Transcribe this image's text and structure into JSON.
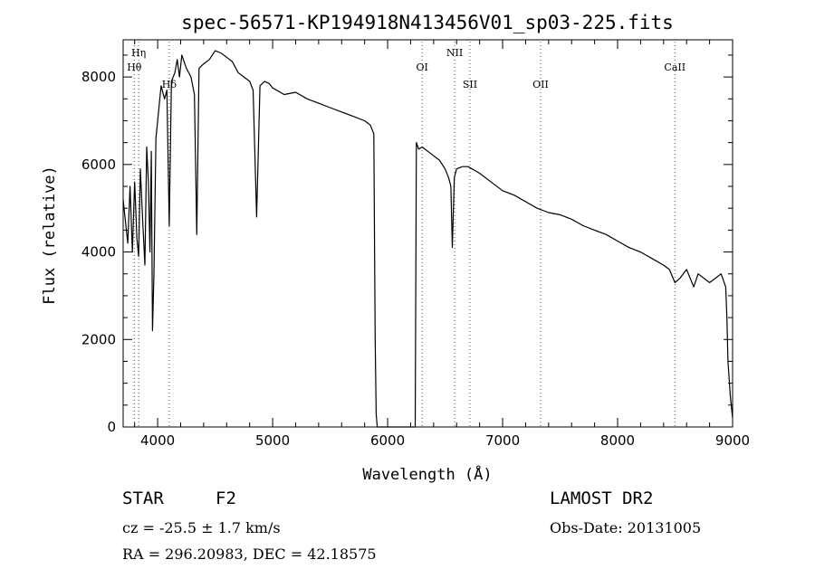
{
  "chart_data": {
    "type": "line",
    "title": "spec-56571-KP194918N413456V01_sp03-225.fits",
    "xlabel": "Wavelength (Å)",
    "ylabel": "Flux (relative)",
    "xlim": [
      3700,
      9000
    ],
    "ylim": [
      0,
      8850
    ],
    "xticks": [
      "4000",
      "5000",
      "6000",
      "7000",
      "8000",
      "9000"
    ],
    "yticks": [
      "0",
      "2000",
      "4000",
      "6000",
      "8000"
    ],
    "grid": false,
    "series": [
      {
        "x": [
          3700,
          3720,
          3740,
          3760,
          3780,
          3800,
          3820,
          3835,
          3850,
          3870,
          3889,
          3905,
          3920,
          3933,
          3945,
          3955,
          3968,
          3985,
          4000,
          4030,
          4060,
          4080,
          4101,
          4120,
          4150,
          4170,
          4190,
          4210,
          4250,
          4290,
          4320,
          4340,
          4360,
          4400,
          4450,
          4500,
          4550,
          4600,
          4650,
          4700,
          4750,
          4800,
          4830,
          4861,
          4890,
          4930,
          4970,
          5000,
          5100,
          5200,
          5300,
          5400,
          5500,
          5600,
          5700,
          5800,
          5850,
          5880,
          5892,
          5900,
          5910,
          5920,
          6240,
          6250,
          6270,
          6300,
          6350,
          6400,
          6450,
          6500,
          6530,
          6550,
          6563,
          6580,
          6600,
          6650,
          6700,
          6800,
          6900,
          7000,
          7100,
          7200,
          7300,
          7400,
          7500,
          7600,
          7700,
          7800,
          7900,
          8000,
          8100,
          8200,
          8300,
          8400,
          8450,
          8498,
          8542,
          8600,
          8662,
          8700,
          8800,
          8850,
          8900,
          8940,
          8950,
          8960,
          8980,
          9000
        ],
        "y": [
          5200,
          4700,
          4200,
          5500,
          4000,
          5600,
          4300,
          3900,
          5900,
          4700,
          3700,
          6400,
          5600,
          4000,
          6300,
          2200,
          3500,
          6600,
          7000,
          7800,
          7500,
          7700,
          4600,
          7900,
          8100,
          8400,
          8000,
          8500,
          8200,
          8000,
          7600,
          4400,
          8200,
          8300,
          8400,
          8600,
          8550,
          8450,
          8350,
          8100,
          8000,
          7900,
          7700,
          4800,
          7800,
          7900,
          7850,
          7750,
          7600,
          7650,
          7500,
          7400,
          7300,
          7200,
          7100,
          7000,
          6900,
          6700,
          2000,
          300,
          0,
          0,
          0,
          6500,
          6350,
          6400,
          6300,
          6200,
          6100,
          5900,
          5700,
          5500,
          4100,
          5700,
          5900,
          5950,
          5950,
          5800,
          5600,
          5400,
          5300,
          5150,
          5000,
          4900,
          4850,
          4750,
          4600,
          4500,
          4400,
          4250,
          4100,
          4000,
          3850,
          3700,
          3600,
          3300,
          3400,
          3600,
          3200,
          3500,
          3300,
          3400,
          3500,
          3200,
          2500,
          1500,
          700,
          200
        ]
      }
    ],
    "annotations": [
      {
        "label": "Hη",
        "x": 3835,
        "row": 0
      },
      {
        "label": "Hθ",
        "x": 3797,
        "row": 1
      },
      {
        "label": "Hδ",
        "x": 4101,
        "row": 2
      },
      {
        "label": "OI",
        "x": 6300,
        "row": 1
      },
      {
        "label": "NII",
        "x": 6583,
        "row": 0
      },
      {
        "label": "SII",
        "x": 6716,
        "row": 2
      },
      {
        "label": "OII",
        "x": 7330,
        "row": 2
      },
      {
        "label": "CaII",
        "x": 8498,
        "row": 1
      }
    ]
  },
  "info": {
    "object_class": "STAR",
    "subclass": "F2",
    "survey": "LAMOST DR2",
    "redshift": "cz = -25.5 ± 1.7 km/s",
    "obs_date": "Obs-Date: 20131005",
    "coords": "RA = 296.20983, DEC =  42.18575"
  }
}
